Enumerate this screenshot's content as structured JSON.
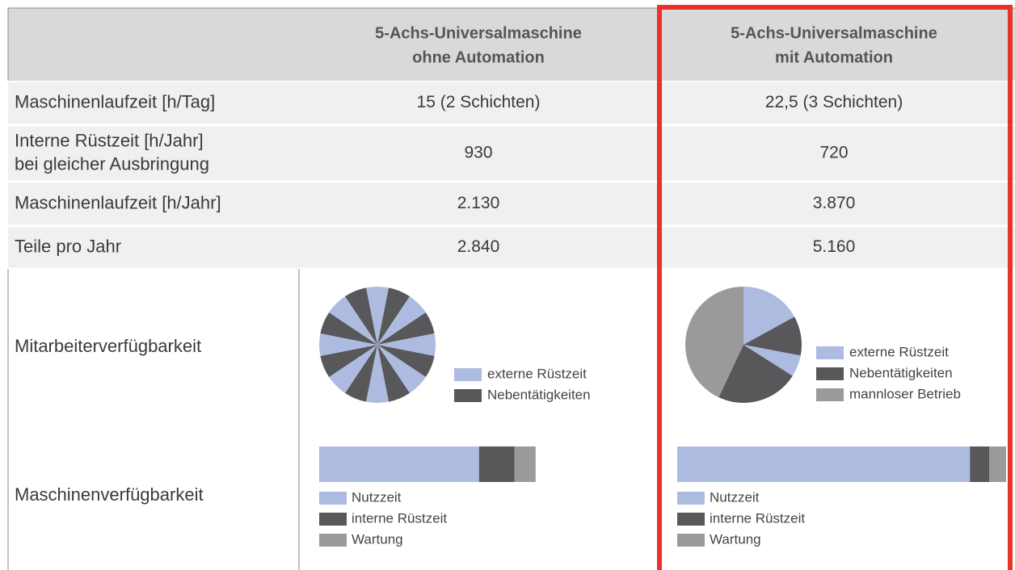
{
  "table": {
    "header": [
      [
        "5-Achs-Universalmaschine",
        "ohne Automation"
      ],
      [
        "5-Achs-Universalmaschine",
        "mit Automation"
      ]
    ],
    "rows": [
      {
        "label": [
          "Maschinenlaufzeit [h/Tag]"
        ],
        "cells": [
          "15 (2 Schichten)",
          "22,5 (3 Schichten)"
        ]
      },
      {
        "label": [
          "Interne Rüstzeit [h/Jahr]",
          "bei gleicher Ausbringung"
        ],
        "cells": [
          "930",
          "720"
        ]
      },
      {
        "label": [
          "Maschinenlaufzeit [h/Jahr]"
        ],
        "cells": [
          "2.130",
          "3.870"
        ]
      },
      {
        "label": [
          "Teile pro Jahr"
        ],
        "cells": [
          "2.840",
          "5.160"
        ]
      }
    ],
    "pie_row": {
      "label": "Mitarbeiterverfügbarkeit",
      "charts": [
        {
          "type": "pie",
          "legend": [
            {
              "name": "externe Rüstzeit",
              "color": "#aebbe0"
            },
            {
              "name": "Nebentätigkeiten",
              "color": "#58585a"
            }
          ],
          "slices": [
            {
              "series": 0,
              "value": 6.25
            },
            {
              "series": 1,
              "value": 6.25
            },
            {
              "series": 0,
              "value": 6.25
            },
            {
              "series": 1,
              "value": 6.25
            },
            {
              "series": 0,
              "value": 6.25
            },
            {
              "series": 1,
              "value": 6.25
            },
            {
              "series": 0,
              "value": 6.25
            },
            {
              "series": 1,
              "value": 6.25
            },
            {
              "series": 0,
              "value": 6.25
            },
            {
              "series": 1,
              "value": 6.25
            },
            {
              "series": 0,
              "value": 6.25
            },
            {
              "series": 1,
              "value": 6.25
            },
            {
              "series": 0,
              "value": 6.25
            },
            {
              "series": 1,
              "value": 6.25
            },
            {
              "series": 0,
              "value": 6.25
            },
            {
              "series": 1,
              "value": 6.25
            }
          ]
        },
        {
          "type": "pie",
          "legend": [
            {
              "name": "externe Rüstzeit",
              "color": "#aebbe0"
            },
            {
              "name": "Nebentätigkeiten",
              "color": "#58585a"
            },
            {
              "name": "mannloser Betrieb",
              "color": "#9a9a9c"
            }
          ],
          "slices": [
            {
              "series": 0,
              "value": 17
            },
            {
              "series": 1,
              "value": 11
            },
            {
              "series": 0,
              "value": 6
            },
            {
              "series": 1,
              "value": 23
            },
            {
              "series": 2,
              "value": 43
            }
          ]
        }
      ]
    },
    "bar_row": {
      "label": "Maschinenverfügbarkeit",
      "charts": [
        {
          "type": "stacked-bar",
          "xlim": [
            0,
            100
          ],
          "series": [
            {
              "name": "Nutzzeit",
              "color": "#aebbe0",
              "value": 48.6
            },
            {
              "name": "interne Rüstzeit",
              "color": "#58585a",
              "value": 10.8
            },
            {
              "name": "Wartung",
              "color": "#9a9a9c",
              "value": 6.4
            }
          ]
        },
        {
          "type": "stacked-bar",
          "xlim": [
            0,
            100
          ],
          "series": [
            {
              "name": "Nutzzeit",
              "color": "#aebbe0",
              "value": 89
            },
            {
              "name": "interne Rüstzeit",
              "color": "#58585a",
              "value": 5.9
            },
            {
              "name": "Wartung",
              "color": "#9a9a9c",
              "value": 5.1
            }
          ]
        }
      ]
    }
  }
}
